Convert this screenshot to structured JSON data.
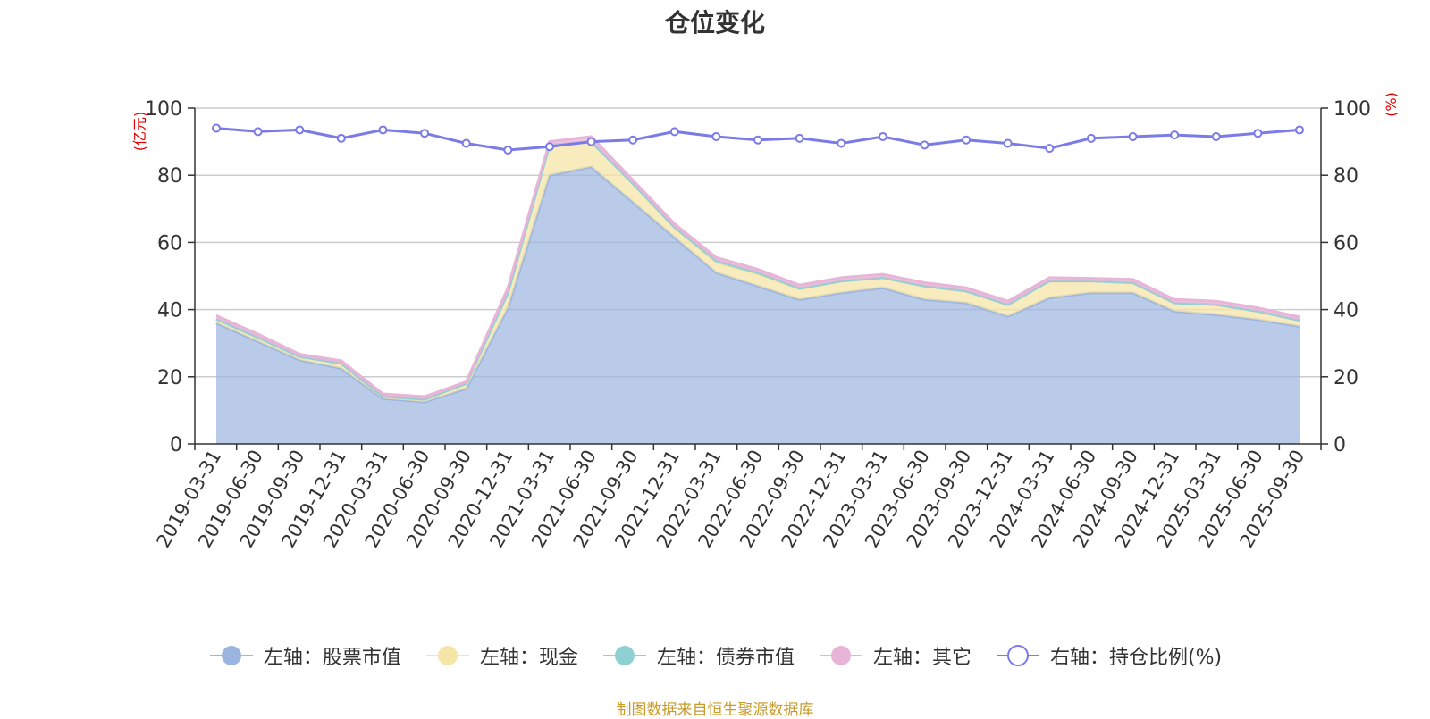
{
  "chart_data": {
    "type": "area",
    "title": "仓位变化",
    "x": [
      "2019-03-31",
      "2019-06-30",
      "2019-09-30",
      "2019-12-31",
      "2020-03-31",
      "2020-06-30",
      "2020-09-30",
      "2020-12-31",
      "2021-03-31",
      "2021-06-30",
      "2021-09-30",
      "2021-12-31",
      "2022-03-31",
      "2022-06-30",
      "2022-09-30",
      "2022-12-31",
      "2023-03-31",
      "2023-06-30",
      "2023-09-30",
      "2023-12-31",
      "2024-03-31",
      "2024-06-30",
      "2024-09-30",
      "2024-12-31",
      "2025-03-31",
      "2025-06-30",
      "2025-09-30"
    ],
    "y_left_label": "(亿元)",
    "y_right_label": "(%)",
    "ylim_left": [
      0,
      100
    ],
    "ylim_right": [
      0,
      100
    ],
    "y_ticks_left": [
      0,
      20,
      40,
      60,
      80,
      100
    ],
    "y_ticks_right": [
      0,
      20,
      40,
      60,
      80,
      100
    ],
    "grid": true,
    "legend_position": "bottom",
    "series": [
      {
        "name": "左轴：股票市值",
        "axis": "left",
        "type": "area",
        "stacked": true,
        "color": "#9bb5e0",
        "values": [
          36.0,
          30.5,
          25.0,
          22.5,
          13.5,
          12.5,
          16.5,
          40.5,
          80.0,
          82.5,
          72.0,
          61.5,
          51.0,
          47.0,
          43.0,
          45.0,
          46.5,
          43.0,
          42.0,
          38.0,
          43.5,
          45.0,
          45.0,
          39.5,
          38.5,
          37.0,
          35.0
        ]
      },
      {
        "name": "左轴：现金",
        "axis": "left",
        "type": "area",
        "stacked": true,
        "color": "#f5e6a8",
        "values": [
          1.2,
          1.2,
          1.0,
          1.5,
          0.7,
          0.8,
          1.5,
          4.5,
          9.0,
          7.5,
          5.5,
          3.0,
          3.0,
          3.5,
          3.0,
          3.5,
          3.0,
          4.0,
          3.5,
          3.5,
          5.0,
          3.5,
          3.0,
          2.5,
          3.0,
          2.5,
          1.8
        ]
      },
      {
        "name": "左轴：债券市值",
        "axis": "left",
        "type": "area",
        "stacked": true,
        "color": "#8fd0d3",
        "values": [
          0,
          0,
          0,
          0,
          0,
          0,
          0,
          0,
          0,
          0,
          0,
          0,
          0.5,
          0.5,
          0.3,
          0,
          0,
          0,
          0,
          0,
          0,
          0,
          0,
          0,
          0,
          0,
          0
        ]
      },
      {
        "name": "左轴：其它",
        "axis": "left",
        "type": "area",
        "stacked": true,
        "color": "#e8b4d8",
        "values": [
          1.0,
          1.0,
          0.7,
          0.8,
          0.7,
          0.8,
          0.5,
          1.5,
          1.0,
          1.5,
          1.0,
          1.0,
          1.0,
          1.0,
          1.0,
          1.0,
          1.0,
          1.0,
          1.0,
          1.0,
          1.0,
          0.8,
          1.0,
          1.0,
          1.0,
          1.0,
          1.0
        ]
      },
      {
        "name": "右轴：持仓比例(%)",
        "axis": "right",
        "type": "line",
        "color": "#7b7be8",
        "values": [
          94.0,
          93.0,
          93.5,
          91.0,
          93.5,
          92.5,
          89.5,
          87.5,
          88.5,
          90.0,
          90.5,
          93.0,
          91.5,
          90.5,
          91.0,
          89.5,
          91.5,
          89.0,
          90.5,
          89.5,
          88.0,
          91.0,
          91.5,
          92.0,
          91.5,
          92.5,
          93.5
        ]
      }
    ]
  },
  "source_note": "制图数据来自恒生聚源数据库"
}
